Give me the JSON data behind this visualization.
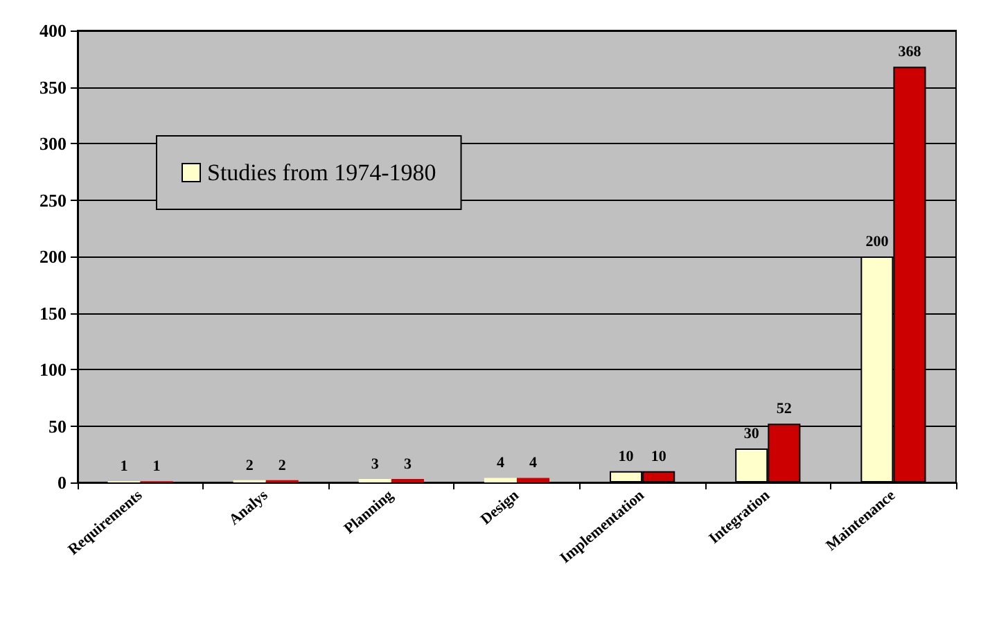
{
  "chart_data": {
    "type": "bar",
    "categories": [
      "Requirements",
      "Analys",
      "Planning",
      "Design",
      "Implementation",
      "Integration",
      "Maintenance"
    ],
    "series": [
      {
        "name": "Studies from 1974-1980",
        "color": "#ffffcc",
        "values": [
          1,
          2,
          3,
          4,
          10,
          30,
          200
        ]
      },
      {
        "color": "#cc0000",
        "values": [
          1,
          2,
          3,
          4,
          10,
          52,
          368
        ]
      }
    ],
    "ylim": [
      0,
      400
    ],
    "yticks": [
      0,
      50,
      100,
      150,
      200,
      250,
      300,
      350,
      400
    ],
    "grid": "y",
    "legend": "top left",
    "data_labels": true
  }
}
